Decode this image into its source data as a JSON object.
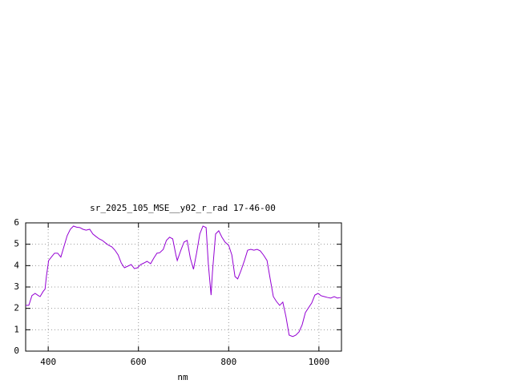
{
  "chart_data": {
    "type": "line",
    "title": "sr_2025_105_MSE__y02_r_rad 17-46-00",
    "x_label": "nm",
    "x": [
      350,
      357,
      364,
      371,
      378,
      382,
      389,
      393,
      396,
      401,
      407,
      414,
      421,
      428,
      435,
      442,
      449,
      456,
      463,
      470,
      477,
      484,
      492,
      499,
      506,
      513,
      520,
      527,
      534,
      541,
      548,
      555,
      562,
      569,
      577,
      584,
      591,
      598,
      605,
      612,
      619,
      627,
      634,
      641,
      647,
      655,
      662,
      669,
      676,
      683,
      686,
      694,
      701,
      708,
      715,
      722,
      729,
      736,
      743,
      750,
      755,
      761,
      764,
      771,
      778,
      785,
      792,
      800,
      807,
      814,
      820,
      827,
      835,
      842,
      849,
      856,
      863,
      870,
      877,
      885,
      892,
      899,
      906,
      913,
      920,
      927,
      934,
      942,
      949,
      956,
      963,
      970,
      977,
      984,
      991,
      998,
      1005,
      1012,
      1019,
      1026,
      1034,
      1041,
      1048
    ],
    "series": [
      {
        "color": "#9400d3",
        "values": [
          2.14,
          2.14,
          2.6,
          2.7,
          2.6,
          2.55,
          2.8,
          2.9,
          3.5,
          4.24,
          4.4,
          4.58,
          4.58,
          4.4,
          4.9,
          5.4,
          5.7,
          5.85,
          5.8,
          5.78,
          5.7,
          5.66,
          5.7,
          5.48,
          5.36,
          5.25,
          5.18,
          5.06,
          4.95,
          4.88,
          4.72,
          4.5,
          4.12,
          3.9,
          3.98,
          4.05,
          3.86,
          3.9,
          4.05,
          4.12,
          4.2,
          4.09,
          4.35,
          4.58,
          4.6,
          4.76,
          5.18,
          5.33,
          5.25,
          4.5,
          4.24,
          4.72,
          5.1,
          5.18,
          4.35,
          3.83,
          4.6,
          5.48,
          5.85,
          5.78,
          4.05,
          2.62,
          3.68,
          5.48,
          5.63,
          5.33,
          5.1,
          4.95,
          4.5,
          3.49,
          3.38,
          3.75,
          4.24,
          4.72,
          4.76,
          4.72,
          4.76,
          4.69,
          4.5,
          4.24,
          3.38,
          2.55,
          2.32,
          2.14,
          2.29,
          1.61,
          0.75,
          0.68,
          0.75,
          0.9,
          1.24,
          1.8,
          2.03,
          2.25,
          2.62,
          2.7,
          2.59,
          2.55,
          2.51,
          2.48,
          2.55,
          2.48,
          2.51
        ]
      }
    ],
    "xlim": [
      350,
      1050
    ],
    "xticks": [
      400,
      600,
      800,
      1000
    ],
    "ylim": [
      0,
      6
    ],
    "yticks": [
      0,
      1,
      2,
      3,
      4,
      5,
      6
    ],
    "grid": true
  }
}
